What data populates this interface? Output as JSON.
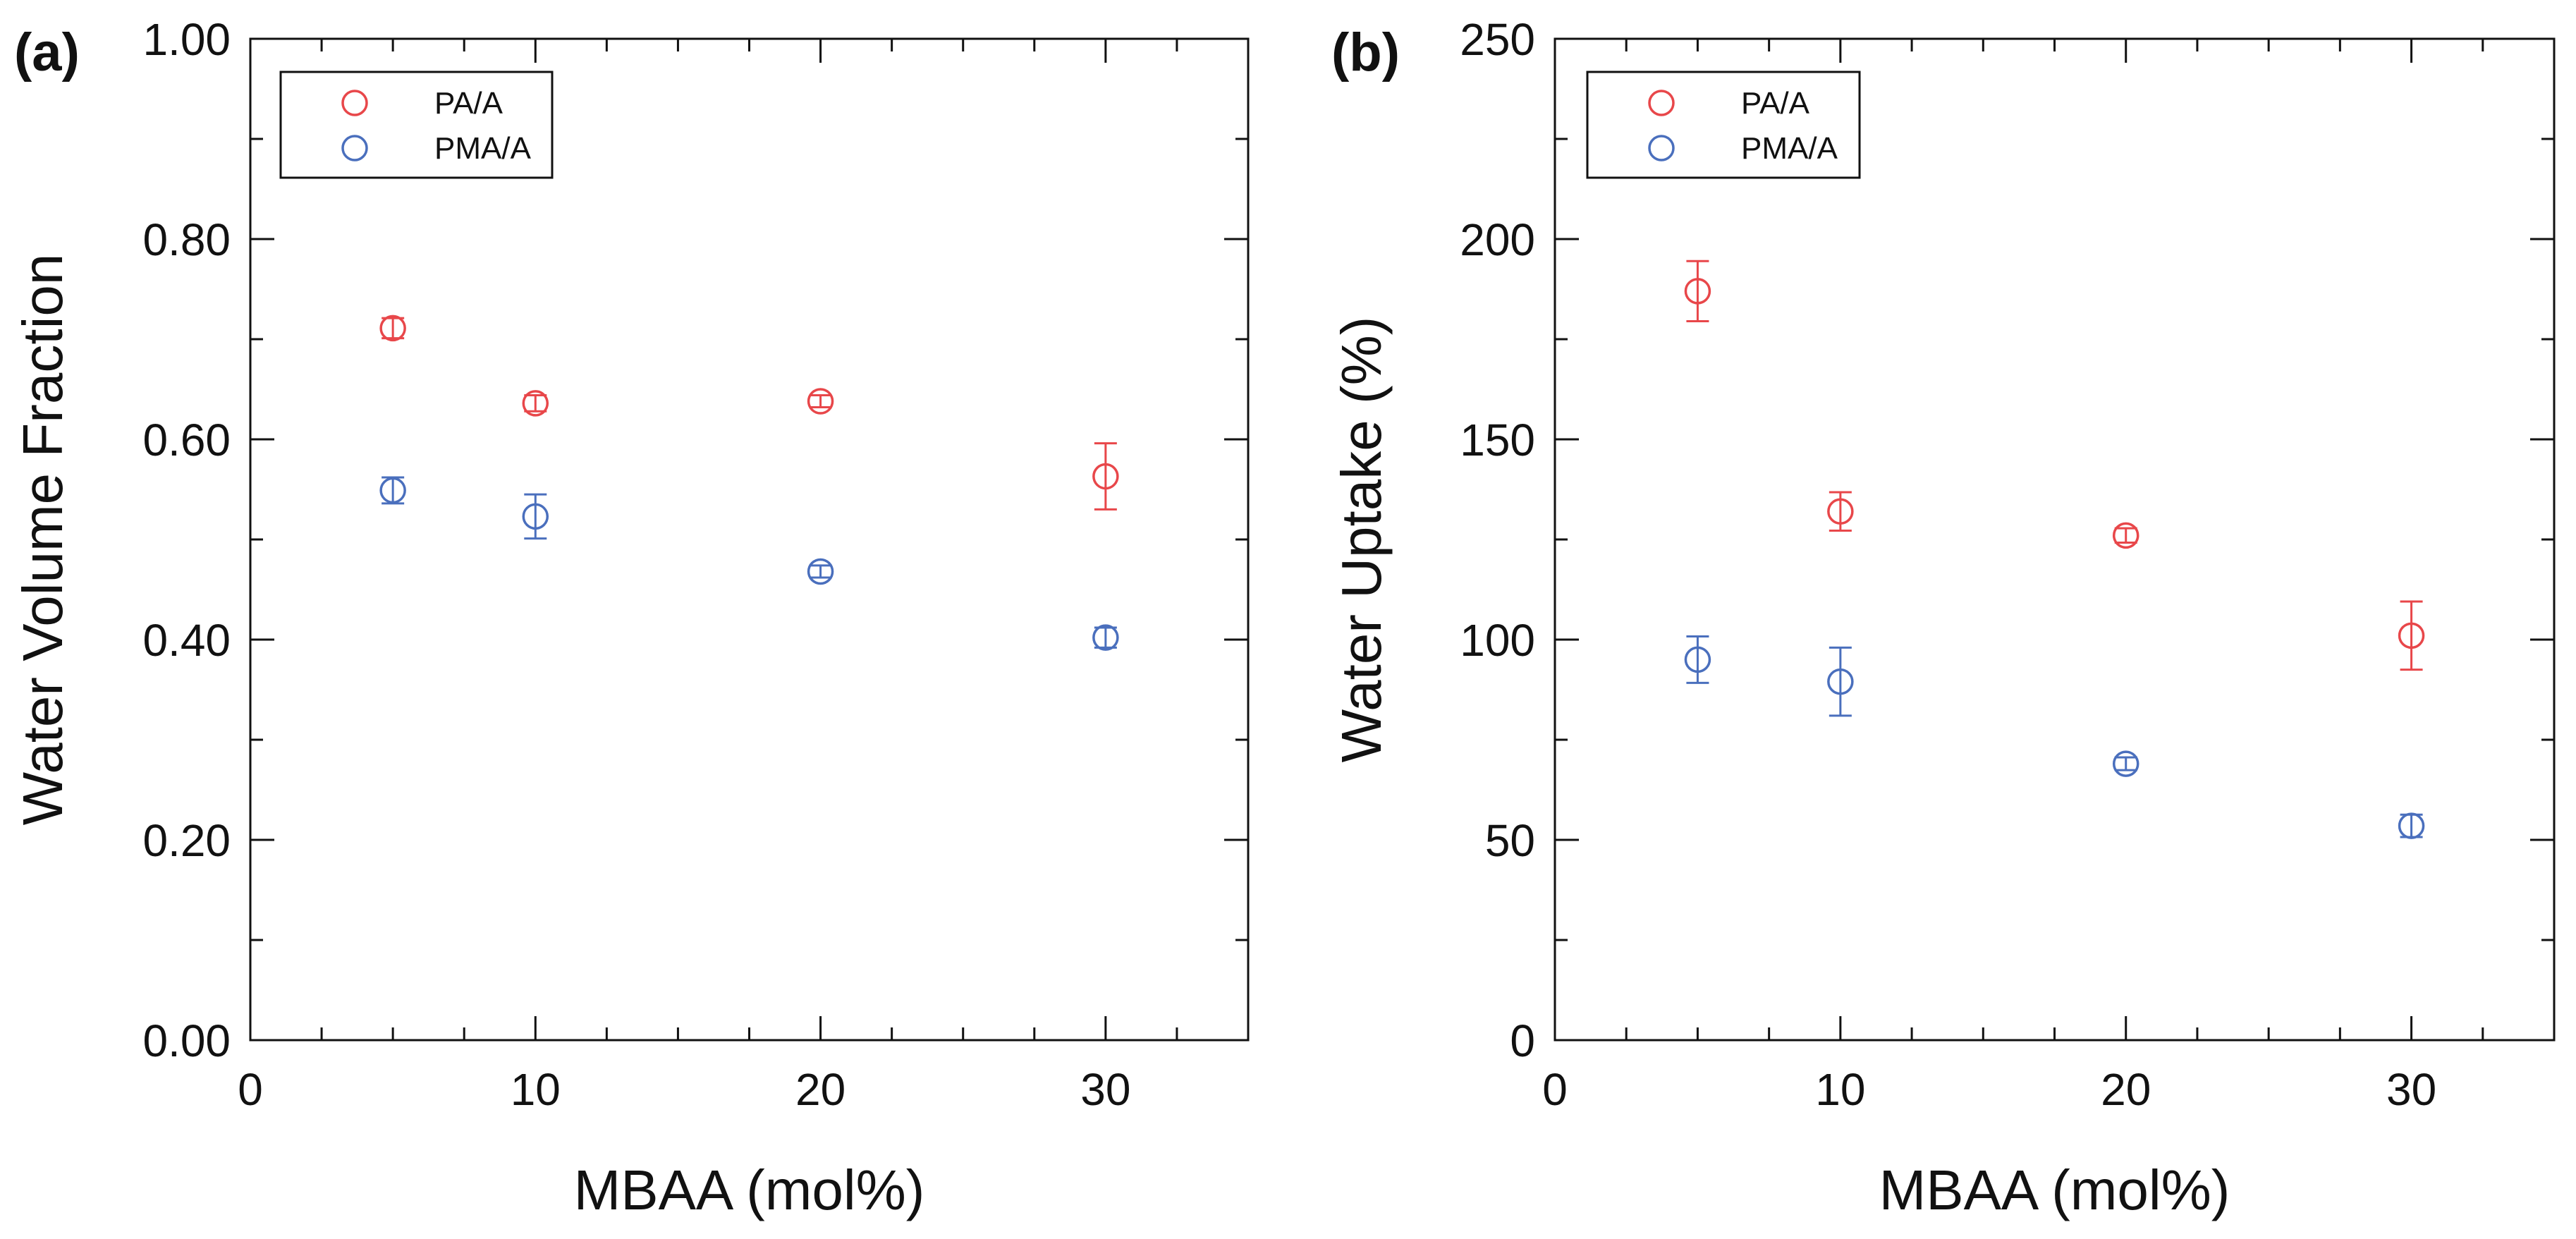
{
  "colors": {
    "PA/A": "#e8474a",
    "PMA/A": "#4a6fbd",
    "axis": "#111111"
  },
  "chart_data": [
    {
      "type": "scatter",
      "panel_label": "(a)",
      "title": "",
      "xlabel": "MBAA (mol%)",
      "ylabel": "Water Volume Fraction",
      "xlim": [
        0,
        35
      ],
      "ylim": [
        0,
        1.0
      ],
      "xticks": [
        0,
        10,
        20,
        30
      ],
      "xtick_labels": [
        "0",
        "10",
        "20",
        "30"
      ],
      "yticks": [
        0,
        0.2,
        0.4,
        0.6,
        0.8,
        1.0
      ],
      "ytick_labels": [
        "0.00",
        "0.20",
        "0.40",
        "0.60",
        "0.80",
        "1.00"
      ],
      "legend_position": "top-left",
      "grid": false,
      "series": [
        {
          "name": "PA/A",
          "marker": "open-circle",
          "x": [
            5,
            10,
            20,
            30
          ],
          "y": [
            0.711,
            0.636,
            0.638,
            0.563
          ],
          "yerr": [
            0.01,
            0.008,
            0.006,
            0.033
          ]
        },
        {
          "name": "PMA/A",
          "marker": "open-circle",
          "x": [
            5,
            10,
            20,
            30
          ],
          "y": [
            0.549,
            0.523,
            0.468,
            0.402
          ],
          "yerr": [
            0.013,
            0.022,
            0.006,
            0.01
          ]
        }
      ]
    },
    {
      "type": "scatter",
      "panel_label": "(b)",
      "title": "",
      "xlabel": "MBAA (mol%)",
      "ylabel": "Water Uptake (%)",
      "xlim": [
        0,
        35
      ],
      "ylim": [
        0,
        250
      ],
      "xticks": [
        0,
        10,
        20,
        30
      ],
      "xtick_labels": [
        "0",
        "10",
        "20",
        "30"
      ],
      "yticks": [
        0,
        50,
        100,
        150,
        200,
        250
      ],
      "ytick_labels": [
        "0",
        "50",
        "100",
        "150",
        "200",
        "250"
      ],
      "legend_position": "top-left",
      "grid": false,
      "series": [
        {
          "name": "PA/A",
          "marker": "open-circle",
          "x": [
            5,
            10,
            20,
            30
          ],
          "y": [
            187,
            132,
            126,
            101
          ],
          "yerr": [
            7.5,
            4.8,
            1.8,
            8.5
          ]
        },
        {
          "name": "PMA/A",
          "marker": "open-circle",
          "x": [
            5,
            10,
            20,
            30
          ],
          "y": [
            95,
            89.5,
            69,
            53.5
          ],
          "yerr": [
            5.8,
            8.5,
            1.6,
            2.8
          ]
        }
      ]
    }
  ]
}
